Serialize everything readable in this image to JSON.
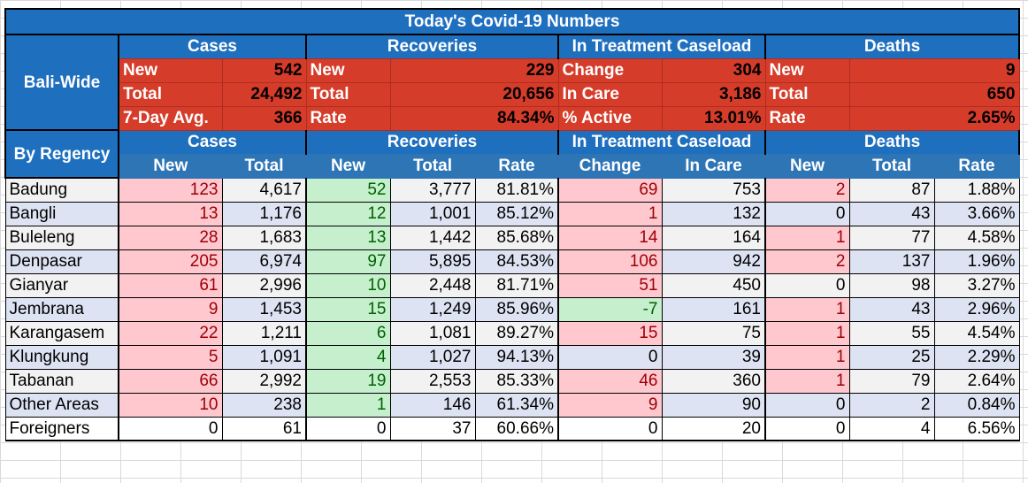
{
  "title": "Today's Covid-19 Numbers",
  "groups": [
    "Cases",
    "Recoveries",
    "In Treatment Caseload",
    "Deaths"
  ],
  "bali_wide_label": "Bali-Wide",
  "by_regency_label": "By Regency",
  "summary": [
    [
      "New",
      "542",
      "New",
      "229",
      "Change",
      "304",
      "New",
      "9"
    ],
    [
      "Total",
      "24,492",
      "Total",
      "20,656",
      "In Care",
      "3,186",
      "Total",
      "650"
    ],
    [
      "7-Day Avg.",
      "366",
      "Rate",
      "84.34%",
      "% Active",
      "13.01%",
      "Rate",
      "2.65%"
    ]
  ],
  "sub_headers": [
    "New",
    "Total",
    "New",
    "Total",
    "Rate",
    "Change",
    "In Care",
    "New",
    "Total",
    "Rate"
  ],
  "rows": [
    {
      "name": "Badung",
      "c_new": "123",
      "c_total": "4,617",
      "r_new": "52",
      "r_total": "3,777",
      "r_rate": "81.81%",
      "t_change": "69",
      "t_care": "753",
      "d_new": "2",
      "d_total": "87",
      "d_rate": "1.88%"
    },
    {
      "name": "Bangli",
      "c_new": "13",
      "c_total": "1,176",
      "r_new": "12",
      "r_total": "1,001",
      "r_rate": "85.12%",
      "t_change": "1",
      "t_care": "132",
      "d_new": "0",
      "d_total": "43",
      "d_rate": "3.66%"
    },
    {
      "name": "Buleleng",
      "c_new": "28",
      "c_total": "1,683",
      "r_new": "13",
      "r_total": "1,442",
      "r_rate": "85.68%",
      "t_change": "14",
      "t_care": "164",
      "d_new": "1",
      "d_total": "77",
      "d_rate": "4.58%"
    },
    {
      "name": "Denpasar",
      "c_new": "205",
      "c_total": "6,974",
      "r_new": "97",
      "r_total": "5,895",
      "r_rate": "84.53%",
      "t_change": "106",
      "t_care": "942",
      "d_new": "2",
      "d_total": "137",
      "d_rate": "1.96%"
    },
    {
      "name": "Gianyar",
      "c_new": "61",
      "c_total": "2,996",
      "r_new": "10",
      "r_total": "2,448",
      "r_rate": "81.71%",
      "t_change": "51",
      "t_care": "450",
      "d_new": "0",
      "d_total": "98",
      "d_rate": "3.27%"
    },
    {
      "name": "Jembrana",
      "c_new": "9",
      "c_total": "1,453",
      "r_new": "15",
      "r_total": "1,249",
      "r_rate": "85.96%",
      "t_change": "-7",
      "t_care": "161",
      "d_new": "1",
      "d_total": "43",
      "d_rate": "2.96%"
    },
    {
      "name": "Karangasem",
      "c_new": "22",
      "c_total": "1,211",
      "r_new": "6",
      "r_total": "1,081",
      "r_rate": "89.27%",
      "t_change": "15",
      "t_care": "75",
      "d_new": "1",
      "d_total": "55",
      "d_rate": "4.54%"
    },
    {
      "name": "Klungkung",
      "c_new": "5",
      "c_total": "1,091",
      "r_new": "4",
      "r_total": "1,027",
      "r_rate": "94.13%",
      "t_change": "0",
      "t_care": "39",
      "d_new": "1",
      "d_total": "25",
      "d_rate": "2.29%"
    },
    {
      "name": "Tabanan",
      "c_new": "66",
      "c_total": "2,992",
      "r_new": "19",
      "r_total": "2,553",
      "r_rate": "85.33%",
      "t_change": "46",
      "t_care": "360",
      "d_new": "1",
      "d_total": "79",
      "d_rate": "2.64%"
    },
    {
      "name": "Other Areas",
      "c_new": "10",
      "c_total": "238",
      "r_new": "1",
      "r_total": "146",
      "r_rate": "61.34%",
      "t_change": "9",
      "t_care": "90",
      "d_new": "0",
      "d_total": "2",
      "d_rate": "0.84%"
    },
    {
      "name": "Foreigners",
      "c_new": "0",
      "c_total": "61",
      "r_new": "0",
      "r_total": "37",
      "r_rate": "60.66%",
      "t_change": "0",
      "t_care": "20",
      "d_new": "0",
      "d_total": "4",
      "d_rate": "6.56%"
    }
  ],
  "colors": {
    "header_blue": "#1f6fbf",
    "sub_blue": "#2e75b6",
    "summary_red": "#d63c2a",
    "pink": "#ffc7ce",
    "green": "#c6efce"
  }
}
